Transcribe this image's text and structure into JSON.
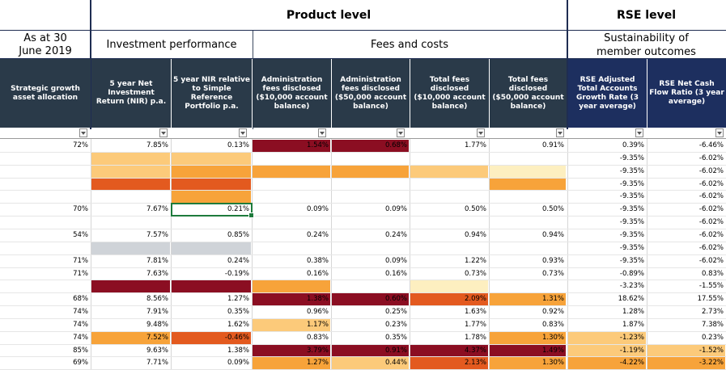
{
  "headers": {
    "product_level": "Product level",
    "rse_level": "RSE level",
    "as_at": "As at 30 June 2019",
    "investment_performance": "Investment performance",
    "fees_and_costs": "Fees and costs",
    "sustainability": "Sustainability of member outcomes"
  },
  "columns": [
    "Strategic growth asset allocation",
    "5 year Net Investment Return (NIR) p.a.",
    "5 year NIR relative to Simple Reference Portfolio p.a.",
    "Administration fees disclosed ($10,000 account balance)",
    "Administration fees disclosed ($50,000 account balance)",
    "Total fees disclosed ($10,000 account balance)",
    "Total fees disclosed ($50,000 account balance)",
    "RSE Adjusted Total Accounts Growth Rate (3 year average)",
    "RSE Net Cash Flow Ratio (3 year average)"
  ],
  "colors": {
    "dark_red": "#8b0e22",
    "orange_red": "#e35a1f",
    "orange": "#f7a33a",
    "light_orange": "#fcca7a",
    "pale_yellow": "#fdefc0",
    "gray": "#cfd3d8",
    "header_dark": "#2a3a49",
    "header_navy": "#1d2f5f"
  },
  "rows": [
    {
      "c": [
        "72%",
        "7.85%",
        "0.13%",
        "1.54%",
        "0.68%",
        "1.77%",
        "0.91%",
        "0.39%",
        "-6.46%"
      ],
      "f": [
        "",
        "",
        "",
        "dark_red",
        "dark_red",
        "",
        "",
        "",
        ""
      ]
    },
    {
      "c": [
        "",
        "",
        "",
        "",
        "",
        "",
        "",
        "-9.35%",
        "-6.02%"
      ],
      "f": [
        "",
        "light_orange",
        "light_orange",
        "",
        "",
        "",
        "",
        "",
        ""
      ]
    },
    {
      "c": [
        "",
        "",
        "",
        "",
        "",
        "",
        "",
        "-9.35%",
        "-6.02%"
      ],
      "f": [
        "",
        "light_orange",
        "orange",
        "orange",
        "orange",
        "light_orange",
        "pale_yellow",
        "",
        ""
      ]
    },
    {
      "c": [
        "",
        "",
        "",
        "",
        "",
        "",
        "",
        "-9.35%",
        "-6.02%"
      ],
      "f": [
        "",
        "orange_red",
        "orange_red",
        "",
        "",
        "",
        "orange",
        "",
        ""
      ]
    },
    {
      "c": [
        "",
        "",
        "",
        "",
        "",
        "",
        "",
        "-9.35%",
        "-6.02%"
      ],
      "f": [
        "",
        "",
        "orange",
        "",
        "",
        "",
        "",
        "",
        ""
      ]
    },
    {
      "c": [
        "70%",
        "7.67%",
        "0.21%",
        "0.09%",
        "0.09%",
        "0.50%",
        "0.50%",
        "-9.35%",
        "-6.02%"
      ],
      "f": [
        "",
        "",
        "",
        "",
        "",
        "",
        "",
        "",
        ""
      ]
    },
    {
      "c": [
        "",
        "",
        "",
        "",
        "",
        "",
        "",
        "-9.35%",
        "-6.02%"
      ],
      "f": [
        "",
        "",
        "",
        "",
        "",
        "",
        "",
        "",
        ""
      ]
    },
    {
      "c": [
        "54%",
        "7.57%",
        "0.85%",
        "0.24%",
        "0.24%",
        "0.94%",
        "0.94%",
        "-9.35%",
        "-6.02%"
      ],
      "f": [
        "",
        "",
        "",
        "",
        "",
        "",
        "",
        "",
        ""
      ]
    },
    {
      "c": [
        "",
        "",
        "",
        "",
        "",
        "",
        "",
        "-9.35%",
        "-6.02%"
      ],
      "f": [
        "",
        "gray",
        "gray",
        "",
        "",
        "",
        "",
        "",
        ""
      ]
    },
    {
      "c": [
        "71%",
        "7.81%",
        "0.24%",
        "0.38%",
        "0.09%",
        "1.22%",
        "0.93%",
        "-9.35%",
        "-6.02%"
      ],
      "f": [
        "",
        "",
        "",
        "",
        "",
        "",
        "",
        "",
        ""
      ]
    },
    {
      "c": [
        "71%",
        "7.63%",
        "-0.19%",
        "0.16%",
        "0.16%",
        "0.73%",
        "0.73%",
        "-0.89%",
        "0.83%"
      ],
      "f": [
        "",
        "",
        "",
        "",
        "",
        "",
        "",
        "",
        ""
      ]
    },
    {
      "c": [
        "",
        "",
        "",
        "",
        "",
        "",
        "",
        "-3.23%",
        "-1.55%"
      ],
      "f": [
        "",
        "dark_red",
        "dark_red",
        "orange",
        "",
        "pale_yellow",
        "",
        "",
        ""
      ]
    },
    {
      "c": [
        "68%",
        "8.56%",
        "1.27%",
        "1.38%",
        "0.60%",
        "2.09%",
        "1.31%",
        "18.62%",
        "17.55%"
      ],
      "f": [
        "",
        "",
        "",
        "dark_red",
        "dark_red",
        "orange_red",
        "orange",
        "",
        ""
      ]
    },
    {
      "c": [
        "74%",
        "7.91%",
        "0.35%",
        "0.96%",
        "0.25%",
        "1.63%",
        "0.92%",
        "1.28%",
        "2.73%"
      ],
      "f": [
        "",
        "",
        "",
        "",
        "",
        "",
        "",
        "",
        ""
      ]
    },
    {
      "c": [
        "74%",
        "9.48%",
        "1.62%",
        "1.17%",
        "0.23%",
        "1.77%",
        "0.83%",
        "1.87%",
        "7.38%"
      ],
      "f": [
        "",
        "",
        "",
        "light_orange",
        "",
        "",
        "",
        "",
        ""
      ]
    },
    {
      "c": [
        "74%",
        "7.52%",
        "-0.46%",
        "0.83%",
        "0.35%",
        "1.78%",
        "1.30%",
        "-1.23%",
        "0.23%"
      ],
      "f": [
        "",
        "orange",
        "orange_red",
        "",
        "",
        "",
        "orange",
        "light_orange",
        ""
      ]
    },
    {
      "c": [
        "85%",
        "9.63%",
        "1.38%",
        "3.79%",
        "0.91%",
        "4.37%",
        "1.49%",
        "-1.19%",
        "-1.52%"
      ],
      "f": [
        "",
        "",
        "",
        "dark_red",
        "dark_red",
        "dark_red",
        "dark_red",
        "light_orange",
        "light_orange"
      ]
    },
    {
      "c": [
        "69%",
        "7.71%",
        "0.09%",
        "1.27%",
        "0.44%",
        "2.13%",
        "1.30%",
        "-4.22%",
        "-3.22%"
      ],
      "f": [
        "",
        "",
        "",
        "orange",
        "light_orange",
        "orange_red",
        "orange",
        "orange",
        "orange"
      ]
    }
  ]
}
